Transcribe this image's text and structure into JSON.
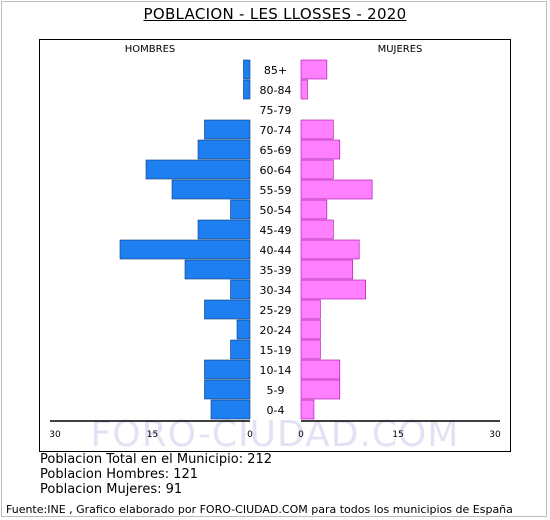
{
  "title": "POBLACION - LES LLOSSES - 2020",
  "watermark": "FORO-CIUDAD.COM",
  "stats": {
    "total": "Poblacion Total en el Municipio: 212",
    "hombres": "Poblacion Hombres: 121",
    "mujeres": "Poblacion Mujeres: 91"
  },
  "source": "Fuente:INE , Grafico elaborado por FORO-CIUDAD.COM para todos los municipios de España",
  "colors": {
    "male": "#1e7ff0",
    "male_stroke": "#0a3a78",
    "female": "#ff80ff",
    "female_stroke": "#b000b0"
  },
  "chart_data": {
    "type": "bar",
    "orientation": "horizontal-pyramid",
    "left_label": "HOMBRES",
    "right_label": "MUJERES",
    "categories": [
      "85+",
      "80-84",
      "75-79",
      "70-74",
      "65-69",
      "60-64",
      "55-59",
      "50-54",
      "45-49",
      "40-44",
      "35-39",
      "30-34",
      "25-29",
      "20-24",
      "15-19",
      "10-14",
      "5-9",
      "0-4"
    ],
    "series": [
      {
        "name": "HOMBRES",
        "values": [
          1,
          1,
          0,
          7,
          8,
          16,
          12,
          3,
          8,
          20,
          10,
          3,
          7,
          2,
          3,
          7,
          7,
          6
        ]
      },
      {
        "name": "MUJERES",
        "values": [
          4,
          1,
          0,
          5,
          6,
          5,
          11,
          4,
          5,
          9,
          8,
          10,
          3,
          3,
          3,
          6,
          6,
          2
        ]
      }
    ],
    "xlim": [
      0,
      30
    ],
    "x_ticks_left": [
      "30",
      "15",
      "0"
    ],
    "x_ticks_right": [
      "0",
      "15",
      "30"
    ]
  }
}
